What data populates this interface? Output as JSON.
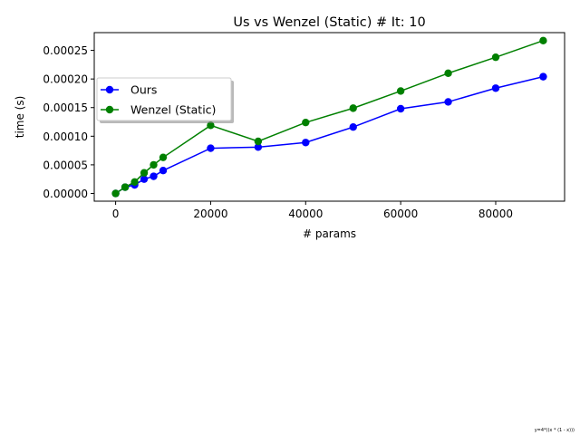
{
  "chart_data": {
    "type": "line",
    "title": "Us vs Wenzel (Static) # It: 10",
    "xlabel": "# params",
    "ylabel": "time (s)",
    "xlim": [
      -4500,
      94500
    ],
    "ylim": [
      -1.35e-05,
      0.000281
    ],
    "x_ticks": [
      0,
      20000,
      40000,
      60000,
      80000
    ],
    "x_tick_labels": [
      "0",
      "20000",
      "40000",
      "60000",
      "80000"
    ],
    "y_ticks": [
      0,
      5e-05,
      0.0001,
      0.00015,
      0.0002,
      0.00025
    ],
    "y_tick_labels": [
      "0.00000",
      "0.00005",
      "0.00010",
      "0.00015",
      "0.00020",
      "0.00025"
    ],
    "grid": false,
    "legend_position": "upper-left",
    "series": [
      {
        "name": "Ours",
        "color": "#0000ff",
        "marker": "circle",
        "x": [
          0,
          2000,
          4000,
          6000,
          8000,
          10000,
          20000,
          30000,
          40000,
          50000,
          60000,
          70000,
          80000,
          90000
        ],
        "values": [
          0.0,
          1.1e-05,
          1.5e-05,
          2.5e-05,
          3e-05,
          4e-05,
          7.9e-05,
          8.1e-05,
          8.9e-05,
          0.000116,
          0.000148,
          0.00016,
          0.000184,
          0.000204
        ]
      },
      {
        "name": "Wenzel (Static)",
        "color": "#008000",
        "marker": "circle",
        "x": [
          0,
          2000,
          4000,
          6000,
          8000,
          10000,
          20000,
          30000,
          40000,
          50000,
          60000,
          70000,
          80000,
          90000
        ],
        "values": [
          0.0,
          1.1e-05,
          2e-05,
          3.6e-05,
          5e-05,
          6.3e-05,
          0.000119,
          9.1e-05,
          0.000124,
          0.000149,
          0.000179,
          0.00021,
          0.000238,
          0.000267
        ]
      }
    ],
    "footnote": "y=4*((x * (1 - x)))"
  }
}
